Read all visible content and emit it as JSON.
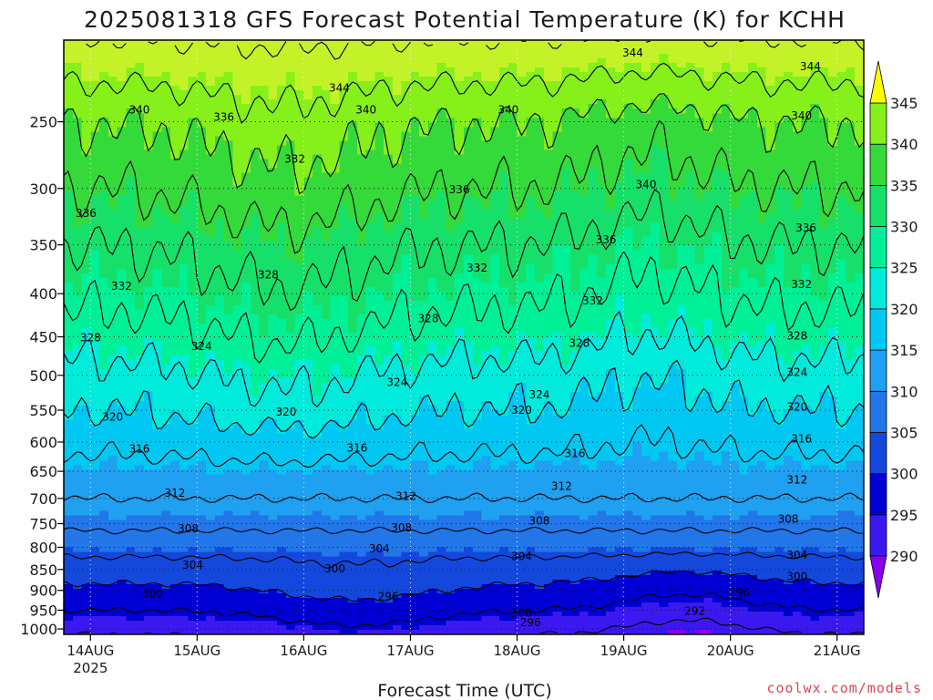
{
  "colors": {
    "ground": "#a0522d",
    "levels": [
      {
        "level": 285,
        "color": "#8800ee"
      },
      {
        "level": 290,
        "color": "#3a18f0"
      },
      {
        "level": 295,
        "color": "#0000d4"
      },
      {
        "level": 300,
        "color": "#1448dc"
      },
      {
        "level": 305,
        "color": "#2276e8"
      },
      {
        "level": 310,
        "color": "#1fa0f0"
      },
      {
        "level": 315,
        "color": "#00c8f2"
      },
      {
        "level": 320,
        "color": "#00ebdc"
      },
      {
        "level": 325,
        "color": "#00f098"
      },
      {
        "level": 330,
        "color": "#17e06a"
      },
      {
        "level": 335,
        "color": "#34da3a"
      },
      {
        "level": 340,
        "color": "#86f01a"
      },
      {
        "level": 345,
        "color": "#c4f228"
      },
      {
        "level": 350,
        "color": "#ffff00"
      }
    ]
  },
  "chart_data": {
    "type": "heatmap",
    "title": "2025081318 GFS Forecast Potential Temperature (K) for KCHH",
    "xlabel": "Forecast Time (UTC)",
    "ylabel": "",
    "credit": "coolwx.com/models",
    "x_ticks": [
      {
        "label": "14AUG",
        "sub": "2025",
        "hours": 6
      },
      {
        "label": "15AUG",
        "hours": 30
      },
      {
        "label": "16AUG",
        "hours": 54
      },
      {
        "label": "17AUG",
        "hours": 78
      },
      {
        "label": "18AUG",
        "hours": 102
      },
      {
        "label": "19AUG",
        "hours": 126
      },
      {
        "label": "20AUG",
        "hours": 150
      },
      {
        "label": "21AUG",
        "hours": 174
      }
    ],
    "x_range_hours": [
      0,
      180
    ],
    "y_ticks": [
      250,
      300,
      350,
      400,
      450,
      500,
      550,
      600,
      650,
      700,
      750,
      800,
      850,
      900,
      950,
      1000
    ],
    "y_range_hpa": [
      200,
      1015
    ],
    "y_scale": "log",
    "colorbar_ticks": [
      290,
      295,
      300,
      305,
      310,
      315,
      320,
      325,
      330,
      335,
      340,
      345
    ],
    "contour_interval_k": 4,
    "contour_labels": [
      {
        "text": "344",
        "hours": 128,
        "p": 207
      },
      {
        "text": "344",
        "hours": 168,
        "p": 215
      },
      {
        "text": "344",
        "hours": 62,
        "p": 228
      },
      {
        "text": "340",
        "hours": 17,
        "p": 242
      },
      {
        "text": "336",
        "hours": 36,
        "p": 247
      },
      {
        "text": "340",
        "hours": 68,
        "p": 242
      },
      {
        "text": "340",
        "hours": 100,
        "p": 242
      },
      {
        "text": "340",
        "hours": 166,
        "p": 246
      },
      {
        "text": "332",
        "hours": 52,
        "p": 277
      },
      {
        "text": "340",
        "hours": 131,
        "p": 297
      },
      {
        "text": "336",
        "hours": 5,
        "p": 321
      },
      {
        "text": "336",
        "hours": 89,
        "p": 301
      },
      {
        "text": "336",
        "hours": 167,
        "p": 334
      },
      {
        "text": "336",
        "hours": 122,
        "p": 345
      },
      {
        "text": "328",
        "hours": 46,
        "p": 380
      },
      {
        "text": "332",
        "hours": 13,
        "p": 392
      },
      {
        "text": "332",
        "hours": 93,
        "p": 373
      },
      {
        "text": "332",
        "hours": 166,
        "p": 390
      },
      {
        "text": "332",
        "hours": 119,
        "p": 408
      },
      {
        "text": "328",
        "hours": 82,
        "p": 428
      },
      {
        "text": "328",
        "hours": 6,
        "p": 451
      },
      {
        "text": "324",
        "hours": 31,
        "p": 462
      },
      {
        "text": "328",
        "hours": 116,
        "p": 458
      },
      {
        "text": "328",
        "hours": 165,
        "p": 449
      },
      {
        "text": "324",
        "hours": 75,
        "p": 510
      },
      {
        "text": "324",
        "hours": 107,
        "p": 527
      },
      {
        "text": "324",
        "hours": 165,
        "p": 496
      },
      {
        "text": "320",
        "hours": 11,
        "p": 560
      },
      {
        "text": "320",
        "hours": 50,
        "p": 553
      },
      {
        "text": "320",
        "hours": 103,
        "p": 550
      },
      {
        "text": "320",
        "hours": 165,
        "p": 545
      },
      {
        "text": "316",
        "hours": 17,
        "p": 611
      },
      {
        "text": "316",
        "hours": 66,
        "p": 610
      },
      {
        "text": "316",
        "hours": 115,
        "p": 619
      },
      {
        "text": "316",
        "hours": 166,
        "p": 595
      },
      {
        "text": "312",
        "hours": 25,
        "p": 690
      },
      {
        "text": "312",
        "hours": 77,
        "p": 696
      },
      {
        "text": "312",
        "hours": 112,
        "p": 677
      },
      {
        "text": "312",
        "hours": 165,
        "p": 665
      },
      {
        "text": "308",
        "hours": 28,
        "p": 760
      },
      {
        "text": "308",
        "hours": 76,
        "p": 758
      },
      {
        "text": "308",
        "hours": 107,
        "p": 744
      },
      {
        "text": "308",
        "hours": 163,
        "p": 741
      },
      {
        "text": "304",
        "hours": 71,
        "p": 803
      },
      {
        "text": "304",
        "hours": 29,
        "p": 840
      },
      {
        "text": "304",
        "hours": 103,
        "p": 820
      },
      {
        "text": "304",
        "hours": 165,
        "p": 817
      },
      {
        "text": "300",
        "hours": 61,
        "p": 848
      },
      {
        "text": "300",
        "hours": 20,
        "p": 908
      },
      {
        "text": "300",
        "hours": 165,
        "p": 866
      },
      {
        "text": "296",
        "hours": 73,
        "p": 915
      },
      {
        "text": "296",
        "hours": 152,
        "p": 905
      },
      {
        "text": "300",
        "hours": 103,
        "p": 957
      },
      {
        "text": "296",
        "hours": 105,
        "p": 983
      },
      {
        "text": "292",
        "hours": 142,
        "p": 952
      }
    ]
  }
}
